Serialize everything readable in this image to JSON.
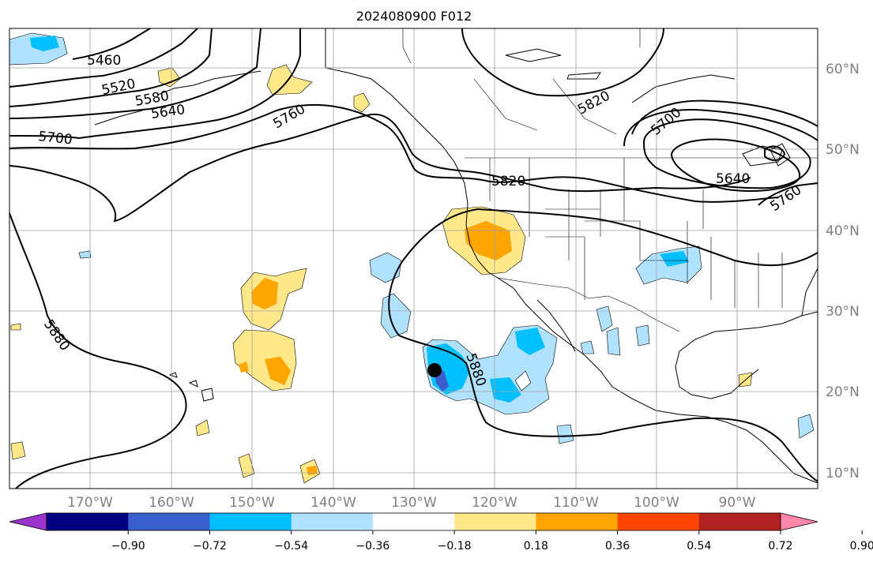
{
  "title": "2024080900 F012",
  "lat_labels": [
    "60°N",
    "50°N",
    "40°N",
    "30°N",
    "20°N",
    "10°N"
  ],
  "lon_labels": [
    "170°W",
    "160°W",
    "150°W",
    "140°W",
    "130°W",
    "120°W",
    "110°W",
    "100°W",
    "90°W"
  ],
  "contour_labels": [
    "5460",
    "5520",
    "5580",
    "5640",
    "5700",
    "5760",
    "5820",
    "5820",
    "5880",
    "5880",
    "5700",
    "5640",
    "5760"
  ],
  "colorbar": {
    "ticks": [
      "−0.90",
      "−0.72",
      "−0.54",
      "−0.36",
      "−0.18",
      "0.18",
      "0.36",
      "0.54",
      "0.72",
      "0.90"
    ],
    "colors": [
      "#9933cc",
      "#000080",
      "#3a5fcd",
      "#00bfff",
      "#b0e2ff",
      "#ffffff",
      "#ffe88a",
      "#ffa500",
      "#ff4500",
      "#b22222",
      "#ff88aa"
    ]
  },
  "colors": {
    "pos_light": "#ffe88a",
    "pos_mid": "#ffa500",
    "neg_light": "#b0e2ff",
    "neg_mid": "#00bfff",
    "neg_deep": "#3a5fcd",
    "contour": "#000000",
    "grid": "#a0a0a0"
  },
  "marker": {
    "label": "storm-center-marker"
  }
}
